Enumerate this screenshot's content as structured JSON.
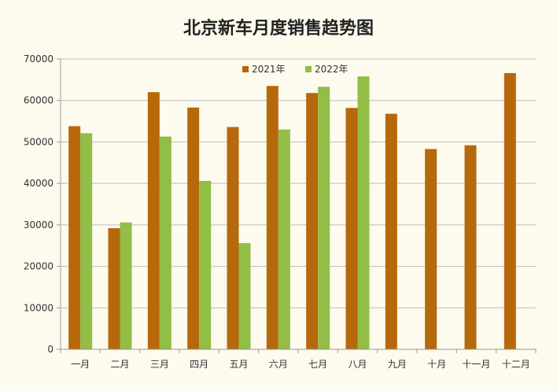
{
  "chart_data": {
    "type": "bar",
    "title": "北京新车月度销售趋势图",
    "xlabel": "",
    "ylabel": "",
    "categories": [
      "一月",
      "二月",
      "三月",
      "四月",
      "五月",
      "六月",
      "七月",
      "八月",
      "九月",
      "十月",
      "十一月",
      "十二月"
    ],
    "series": [
      {
        "name": "2021年",
        "color": "#b5690a",
        "values": [
          53800,
          29200,
          62000,
          58300,
          53600,
          63500,
          61800,
          58200,
          56800,
          48300,
          49200,
          66600
        ]
      },
      {
        "name": "2022年",
        "color": "#92bd46",
        "values": [
          52100,
          30600,
          51300,
          40600,
          25600,
          53000,
          63300,
          65800,
          null,
          null,
          null,
          null
        ]
      }
    ],
    "ylim": [
      0,
      70000
    ],
    "yticks": [
      0,
      10000,
      20000,
      30000,
      40000,
      50000,
      60000,
      70000
    ],
    "grid": true,
    "legend_position": "top-center"
  },
  "colors": {
    "background": "#fdfaee",
    "gridline": "#bdbdbd",
    "axis": "#9a9a9a"
  }
}
